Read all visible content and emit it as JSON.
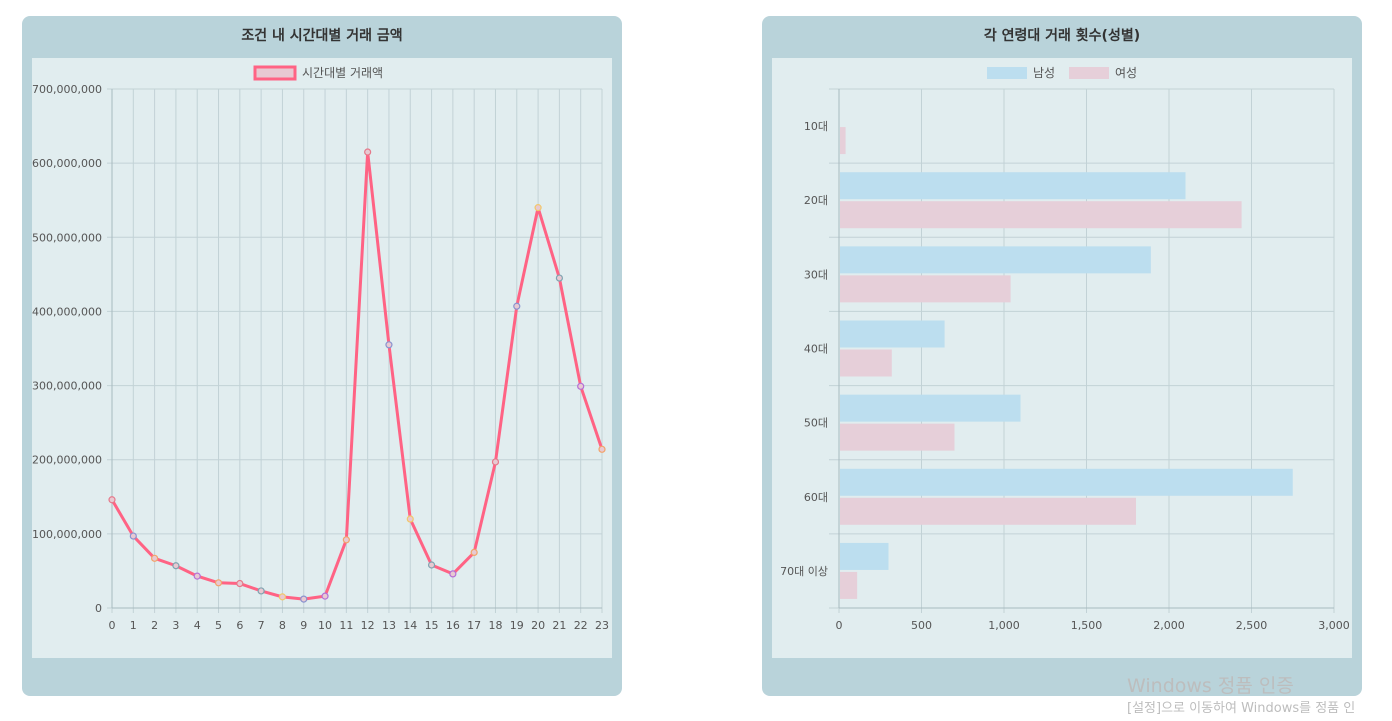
{
  "charts": {
    "left_title": "조건 내 시간대별 거래 금액",
    "right_title": "각 연령대 거래 횟수(성별)"
  },
  "watermark": {
    "title": "Windows 정품 인증",
    "subtitle": "[설정]으로 이동하여 Windows를 정품 인"
  },
  "chart_data": [
    {
      "type": "line",
      "title": "조건 내 시간대별 거래 금액",
      "legend_position": "top",
      "grid": true,
      "x": [
        0,
        1,
        2,
        3,
        4,
        5,
        6,
        7,
        8,
        9,
        10,
        11,
        12,
        13,
        14,
        15,
        16,
        17,
        18,
        19,
        20,
        21,
        22,
        23
      ],
      "x_tick_labels": [
        "0",
        "1",
        "2",
        "3",
        "4",
        "5",
        "6",
        "7",
        "8",
        "9",
        "10",
        "11",
        "12",
        "13",
        "14",
        "15",
        "16",
        "17",
        "18",
        "19",
        "20",
        "21",
        "22",
        "23"
      ],
      "series": [
        {
          "name": "시간대별 거래액",
          "color": "#ff6384",
          "fill_color": "#e8c9d2",
          "values": [
            146000000,
            97000000,
            67000000,
            57000000,
            43000000,
            34000000,
            33000000,
            23000000,
            15000000,
            12000000,
            16000000,
            92000000,
            615000000,
            355000000,
            120000000,
            58000000,
            46000000,
            75000000,
            197000000,
            407000000,
            540000000,
            445000000,
            299000000,
            214000000
          ]
        }
      ],
      "point_colors": [
        "#e6788a",
        "#8a93cf",
        "#f2a36b",
        "#7fa3b0",
        "#b56fd6",
        "#f2a36b",
        "#e6788a",
        "#7fa3b0",
        "#f2c76b",
        "#8a93cf",
        "#b56fd6",
        "#f2a36b",
        "#e6788a",
        "#8a93cf",
        "#f2c76b",
        "#7fa3b0",
        "#b56fd6",
        "#f2a36b",
        "#e6788a",
        "#8a93cf",
        "#f2c76b",
        "#7fa3b0",
        "#b56fd6",
        "#f2a36b"
      ],
      "ylim": [
        0,
        700000000
      ],
      "y_ticks": [
        0,
        100000000,
        200000000,
        300000000,
        400000000,
        500000000,
        600000000,
        700000000
      ],
      "y_tick_labels": [
        "0",
        "100,000,000",
        "200,000,000",
        "300,000,000",
        "400,000,000",
        "500,000,000",
        "600,000,000",
        "700,000,000"
      ]
    },
    {
      "type": "bar",
      "orientation": "horizontal",
      "title": "각 연령대 거래 횟수(성별)",
      "legend_position": "top",
      "grid": true,
      "categories": [
        "10대",
        "20대",
        "30대",
        "40대",
        "50대",
        "60대",
        "70대 이상"
      ],
      "series": [
        {
          "name": "남성",
          "color": "#bcdeef",
          "values": [
            5,
            2100,
            1890,
            640,
            1100,
            2750,
            300
          ]
        },
        {
          "name": "여성",
          "color": "#e6cfd9",
          "values": [
            40,
            2440,
            1040,
            320,
            700,
            1800,
            110
          ]
        }
      ],
      "xlim": [
        0,
        3000
      ],
      "x_ticks": [
        0,
        500,
        1000,
        1500,
        2000,
        2500,
        3000
      ],
      "x_tick_labels": [
        "0",
        "500",
        "1,000",
        "1,500",
        "2,000",
        "2,500",
        "3,000"
      ]
    }
  ]
}
